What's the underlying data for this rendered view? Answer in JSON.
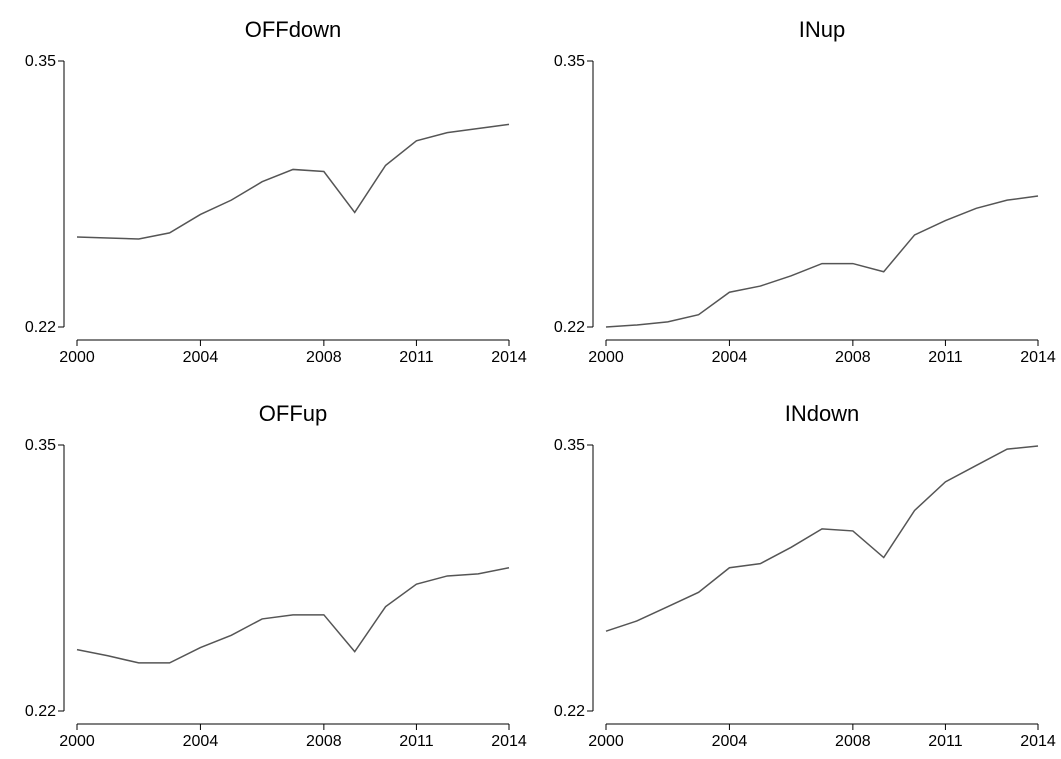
{
  "chart_data": [
    {
      "type": "line",
      "title": "OFFdown",
      "color": "#555555",
      "x": [
        2000,
        2001,
        2002,
        2003,
        2004,
        2005,
        2006,
        2007,
        2008,
        2009,
        2010,
        2011,
        2012,
        2013,
        2014
      ],
      "values": [
        0.264,
        0.2635,
        0.263,
        0.266,
        0.275,
        0.282,
        0.291,
        0.297,
        0.296,
        0.276,
        0.299,
        0.311,
        0.315,
        0.317,
        0.319
      ],
      "xlim": [
        2000,
        2014
      ],
      "ylim": [
        0.22,
        0.35
      ],
      "xticks": [
        2000,
        2004,
        2008,
        2011,
        2014
      ],
      "yticks": [
        0.22,
        0.35
      ]
    },
    {
      "type": "line",
      "title": "INup",
      "color": "#555555",
      "x": [
        2000,
        2001,
        2002,
        2003,
        2004,
        2005,
        2006,
        2007,
        2008,
        2009,
        2010,
        2011,
        2012,
        2013,
        2014
      ],
      "values": [
        0.22,
        0.221,
        0.2225,
        0.226,
        0.237,
        0.24,
        0.245,
        0.251,
        0.251,
        0.247,
        0.265,
        0.272,
        0.278,
        0.282,
        0.284
      ],
      "xlim": [
        2000,
        2014
      ],
      "ylim": [
        0.22,
        0.35
      ],
      "xticks": [
        2000,
        2004,
        2008,
        2011,
        2014
      ],
      "yticks": [
        0.22,
        0.35
      ]
    },
    {
      "type": "line",
      "title": "OFFup",
      "color": "#555555",
      "x": [
        2000,
        2001,
        2002,
        2003,
        2004,
        2005,
        2006,
        2007,
        2008,
        2009,
        2010,
        2011,
        2012,
        2013,
        2014
      ],
      "values": [
        0.25,
        0.247,
        0.2435,
        0.2435,
        0.251,
        0.257,
        0.265,
        0.267,
        0.267,
        0.249,
        0.271,
        0.282,
        0.286,
        0.287,
        0.29
      ],
      "xlim": [
        2000,
        2014
      ],
      "ylim": [
        0.22,
        0.35
      ],
      "xticks": [
        2000,
        2004,
        2008,
        2011,
        2014
      ],
      "yticks": [
        0.22,
        0.35
      ]
    },
    {
      "type": "line",
      "title": "INdown",
      "color": "#555555",
      "x": [
        2000,
        2001,
        2002,
        2003,
        2004,
        2005,
        2006,
        2007,
        2008,
        2009,
        2010,
        2011,
        2012,
        2013,
        2014
      ],
      "values": [
        0.259,
        0.264,
        0.271,
        0.278,
        0.29,
        0.292,
        0.3,
        0.309,
        0.308,
        0.295,
        0.318,
        0.332,
        0.34,
        0.348,
        0.3495
      ],
      "xlim": [
        2000,
        2014
      ],
      "ylim": [
        0.22,
        0.35
      ],
      "xticks": [
        2000,
        2004,
        2008,
        2011,
        2014
      ],
      "yticks": [
        0.22,
        0.35
      ]
    }
  ]
}
